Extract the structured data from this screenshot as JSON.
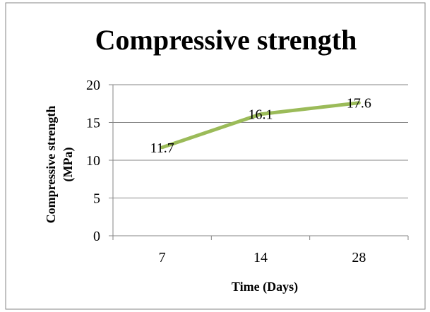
{
  "colors": {
    "line": "#9BBB59",
    "grid": "#868686",
    "text": "#000000",
    "frame": "#868686"
  },
  "chart_data": {
    "type": "line",
    "title": "Compressive strength",
    "xlabel": "Time (Days)",
    "ylabel_lines": [
      "Compressive strength",
      "(MPa)"
    ],
    "categories": [
      "7",
      "14",
      "28"
    ],
    "series": [
      {
        "values": [
          11.7,
          16.1,
          17.6
        ],
        "data_labels": [
          "11.7",
          "16.1",
          "17.6"
        ]
      }
    ],
    "ylim": [
      0,
      20
    ],
    "yticks": [
      "0",
      "5",
      "10",
      "15",
      "20"
    ],
    "grid": true,
    "legend": "none"
  }
}
